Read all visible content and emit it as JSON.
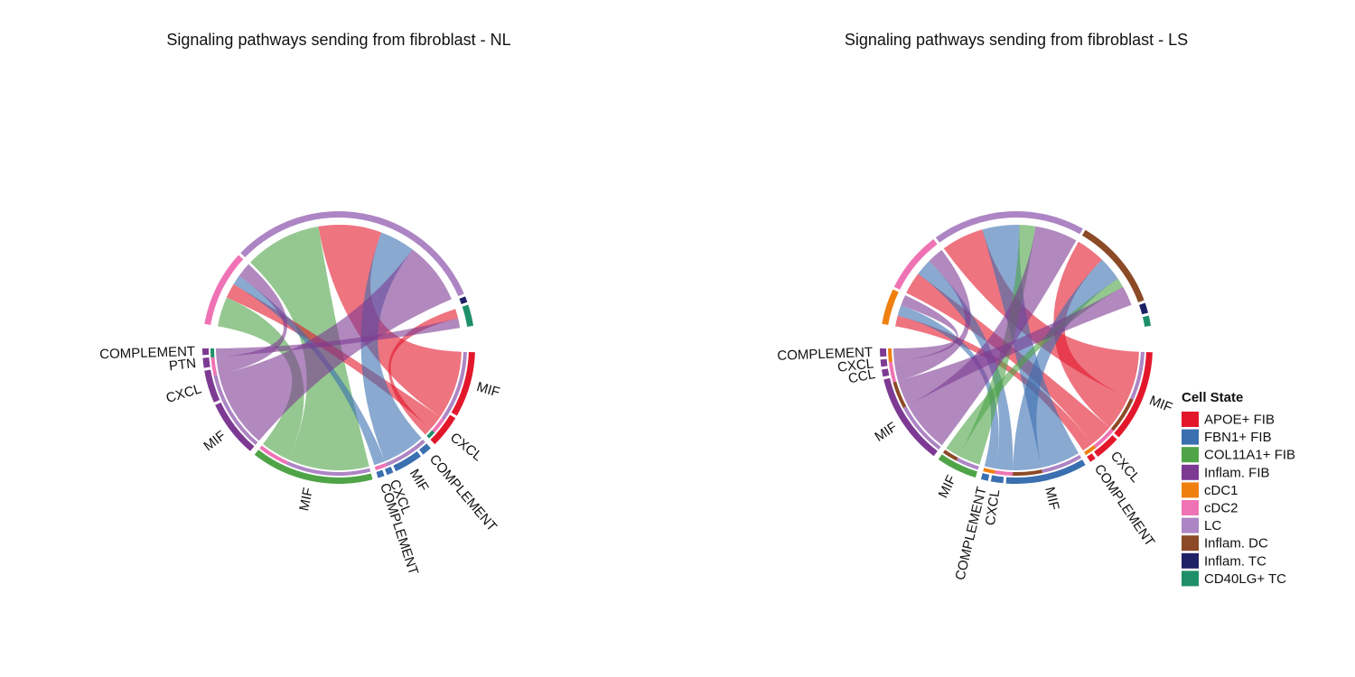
{
  "colors": {
    "APOE+ FIB": "#e3172b",
    "FBN1+ FIB": "#3a6fb0",
    "COL11A1+ FIB": "#4fa447",
    "Inflam. FIB": "#7d3a93",
    "cDC1": "#ef8010",
    "cDC2": "#ef73b4",
    "LC": "#ad85c4",
    "Inflam. DC": "#8c4a26",
    "Inflam. TC": "#1f2166",
    "CD40LG+ TC": "#1e8f68"
  },
  "legend": {
    "title": "Cell State",
    "items": [
      "APOE+ FIB",
      "FBN1+ FIB",
      "COL11A1+ FIB",
      "Inflam. FIB",
      "cDC1",
      "cDC2",
      "LC",
      "Inflam. DC",
      "Inflam. TC",
      "CD40LG+ TC"
    ]
  },
  "chart_data": [
    {
      "type": "chord",
      "title": "Signaling pathways sending from fibroblast - NL",
      "senders": [
        {
          "cell": "APOE+ FIB",
          "pathways": [
            {
              "name": "MIF",
              "weight": 8
            },
            {
              "name": "CXCL",
              "weight": 4
            }
          ]
        },
        {
          "cell": "FBN1+ FIB",
          "pathways": [
            {
              "name": "COMPLEMENT",
              "weight": 1.2
            },
            {
              "name": "MIF",
              "weight": 3.5
            },
            {
              "name": "CXCL",
              "weight": 0.8
            },
            {
              "name": "COMPLEMENT",
              "weight": 0.8
            }
          ]
        },
        {
          "cell": "COL11A1+ FIB",
          "pathways": [
            {
              "name": "MIF",
              "weight": 15
            }
          ]
        },
        {
          "cell": "Inflam. FIB",
          "pathways": [
            {
              "name": "MIF",
              "weight": 7
            },
            {
              "name": "CXCL",
              "weight": 4
            },
            {
              "name": "PTN",
              "weight": 1.2
            },
            {
              "name": "COMPLEMENT",
              "weight": 0.8
            }
          ]
        }
      ],
      "receivers": [
        {
          "cell": "cDC2",
          "weight": 9
        },
        {
          "cell": "LC",
          "weight": 31
        },
        {
          "cell": "Inflam. TC",
          "weight": 0.7
        },
        {
          "cell": "CD40LG+ TC",
          "weight": 2.5
        }
      ],
      "flows": [
        {
          "from": "COL11A1+ FIB",
          "to": "LC",
          "value": 11
        },
        {
          "from": "COL11A1+ FIB",
          "to": "cDC2",
          "value": 4
        },
        {
          "from": "APOE+ FIB",
          "to": "LC",
          "value": 9
        },
        {
          "from": "APOE+ FIB",
          "to": "cDC2",
          "value": 2
        },
        {
          "from": "APOE+ FIB",
          "to": "CD40LG+ TC",
          "value": 1
        },
        {
          "from": "FBN1+ FIB",
          "to": "LC",
          "value": 5
        },
        {
          "from": "FBN1+ FIB",
          "to": "cDC2",
          "value": 1.3
        },
        {
          "from": "Inflam. FIB",
          "to": "LC",
          "value": 9
        },
        {
          "from": "Inflam. FIB",
          "to": "cDC2",
          "value": 2
        },
        {
          "from": "Inflam. FIB",
          "to": "CD40LG+ TC",
          "value": 1
        }
      ]
    },
    {
      "type": "chord",
      "title": "Signaling pathways sending from fibroblast - LS",
      "senders": [
        {
          "cell": "APOE+ FIB",
          "pathways": [
            {
              "name": "MIF",
              "weight": 9
            },
            {
              "name": "CXCL",
              "weight": 2.5
            },
            {
              "name": "COMPLEMENT",
              "weight": 0.6
            }
          ]
        },
        {
          "cell": "FBN1+ FIB",
          "pathways": [
            {
              "name": "MIF",
              "weight": 8
            },
            {
              "name": "CXCL",
              "weight": 1.2
            },
            {
              "name": "COMPLEMENT",
              "weight": 0.7
            }
          ]
        },
        {
          "cell": "COL11A1+ FIB",
          "pathways": [
            {
              "name": "MIF",
              "weight": 4
            }
          ]
        },
        {
          "cell": "Inflam. FIB",
          "pathways": [
            {
              "name": "MIF",
              "weight": 9
            },
            {
              "name": "CCL",
              "weight": 0.7
            },
            {
              "name": "CXCL",
              "weight": 0.7
            },
            {
              "name": "COMPLEMENT",
              "weight": 0.8
            }
          ]
        }
      ],
      "receivers": [
        {
          "cell": "cDC1",
          "weight": 3.5
        },
        {
          "cell": "cDC2",
          "weight": 6
        },
        {
          "cell": "LC",
          "weight": 15
        },
        {
          "cell": "Inflam. DC",
          "weight": 9
        },
        {
          "cell": "Inflam. TC",
          "weight": 1
        },
        {
          "cell": "CD40LG+ TC",
          "weight": 1
        }
      ],
      "flows": [
        {
          "from": "APOE+ FIB",
          "to": "LC",
          "value": 4
        },
        {
          "from": "APOE+ FIB",
          "to": "Inflam. DC",
          "value": 3
        },
        {
          "from": "APOE+ FIB",
          "to": "cDC2",
          "value": 2
        },
        {
          "from": "APOE+ FIB",
          "to": "cDC1",
          "value": 1
        },
        {
          "from": "FBN1+ FIB",
          "to": "LC",
          "value": 3.5
        },
        {
          "from": "FBN1+ FIB",
          "to": "Inflam. DC",
          "value": 2.5
        },
        {
          "from": "FBN1+ FIB",
          "to": "cDC2",
          "value": 1.5
        },
        {
          "from": "FBN1+ FIB",
          "to": "cDC1",
          "value": 1
        },
        {
          "from": "COL11A1+ FIB",
          "to": "LC",
          "value": 1.5
        },
        {
          "from": "COL11A1+ FIB",
          "to": "Inflam. DC",
          "value": 1
        },
        {
          "from": "Inflam. FIB",
          "to": "LC",
          "value": 4
        },
        {
          "from": "Inflam. FIB",
          "to": "Inflam. DC",
          "value": 2
        },
        {
          "from": "Inflam. FIB",
          "to": "cDC2",
          "value": 1.5
        },
        {
          "from": "Inflam. FIB",
          "to": "cDC1",
          "value": 1
        }
      ]
    }
  ]
}
